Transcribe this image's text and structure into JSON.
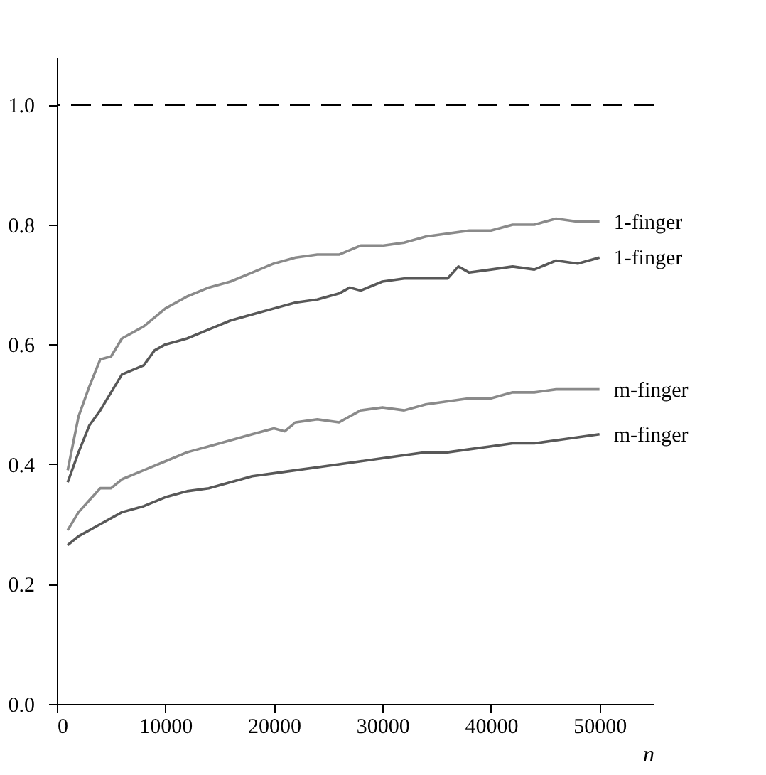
{
  "chart_data": {
    "type": "line",
    "xlabel": "n",
    "series": [
      {
        "name": "1-finger",
        "color": "#8a8a8a",
        "x": [
          1000,
          2000,
          3000,
          4000,
          5000,
          6000,
          8000,
          10000,
          12000,
          14000,
          16000,
          18000,
          20000,
          22000,
          24000,
          26000,
          28000,
          30000,
          32000,
          34000,
          36000,
          38000,
          40000,
          42000,
          44000,
          46000,
          48000,
          50000
        ],
        "values": [
          0.39,
          0.48,
          0.53,
          0.575,
          0.58,
          0.61,
          0.63,
          0.66,
          0.68,
          0.695,
          0.705,
          0.72,
          0.735,
          0.745,
          0.75,
          0.75,
          0.765,
          0.765,
          0.77,
          0.78,
          0.785,
          0.79,
          0.79,
          0.8,
          0.8,
          0.81,
          0.805,
          0.805
        ]
      },
      {
        "name": "1-finger",
        "color": "#585858",
        "x": [
          1000,
          2000,
          3000,
          4000,
          5000,
          6000,
          8000,
          9000,
          10000,
          12000,
          14000,
          16000,
          18000,
          20000,
          22000,
          24000,
          26000,
          27000,
          28000,
          30000,
          32000,
          34000,
          36000,
          37000,
          38000,
          40000,
          42000,
          44000,
          46000,
          48000,
          50000
        ],
        "values": [
          0.37,
          0.42,
          0.465,
          0.49,
          0.52,
          0.55,
          0.565,
          0.59,
          0.6,
          0.61,
          0.625,
          0.64,
          0.65,
          0.66,
          0.67,
          0.675,
          0.685,
          0.695,
          0.69,
          0.705,
          0.71,
          0.71,
          0.71,
          0.73,
          0.72,
          0.725,
          0.73,
          0.725,
          0.74,
          0.735,
          0.745
        ]
      },
      {
        "name": "m-finger",
        "color": "#8a8a8a",
        "x": [
          1000,
          2000,
          3000,
          4000,
          5000,
          6000,
          8000,
          10000,
          12000,
          14000,
          16000,
          18000,
          20000,
          21000,
          22000,
          24000,
          26000,
          28000,
          30000,
          32000,
          34000,
          36000,
          38000,
          40000,
          42000,
          44000,
          46000,
          48000,
          50000
        ],
        "values": [
          0.29,
          0.32,
          0.34,
          0.36,
          0.36,
          0.375,
          0.39,
          0.405,
          0.42,
          0.43,
          0.44,
          0.45,
          0.46,
          0.455,
          0.47,
          0.475,
          0.47,
          0.49,
          0.495,
          0.49,
          0.5,
          0.505,
          0.51,
          0.51,
          0.52,
          0.52,
          0.525,
          0.525,
          0.525
        ]
      },
      {
        "name": "m-finger",
        "color": "#585858",
        "x": [
          1000,
          2000,
          4000,
          6000,
          8000,
          10000,
          12000,
          14000,
          16000,
          18000,
          20000,
          22000,
          24000,
          26000,
          28000,
          30000,
          32000,
          34000,
          36000,
          38000,
          40000,
          42000,
          44000,
          46000,
          48000,
          50000
        ],
        "values": [
          0.265,
          0.28,
          0.3,
          0.32,
          0.33,
          0.345,
          0.355,
          0.36,
          0.37,
          0.38,
          0.385,
          0.39,
          0.395,
          0.4,
          0.405,
          0.41,
          0.415,
          0.42,
          0.42,
          0.425,
          0.43,
          0.435,
          0.435,
          0.44,
          0.445,
          0.45
        ]
      }
    ],
    "xlim": [
      0,
      55000
    ],
    "xticks": [
      0,
      10000,
      20000,
      30000,
      40000,
      50000
    ],
    "ylim": [
      0,
      1.08
    ],
    "yticks": [
      {
        "value": 0,
        "label": "0.0"
      },
      {
        "value": 0.2,
        "label": "0.2"
      },
      {
        "value": 0.4,
        "label": "0.4"
      },
      {
        "value": 0.6,
        "label": "0.6"
      },
      {
        "value": 0.8,
        "label": "0.8"
      },
      {
        "value": 1.0,
        "label": "1.0"
      }
    ],
    "ref_lines": [
      {
        "axis": "y",
        "value": 1.0,
        "color": "#000000",
        "line_style": "dashed"
      }
    ],
    "grid": false,
    "marker": "none",
    "line_style": "solid"
  }
}
